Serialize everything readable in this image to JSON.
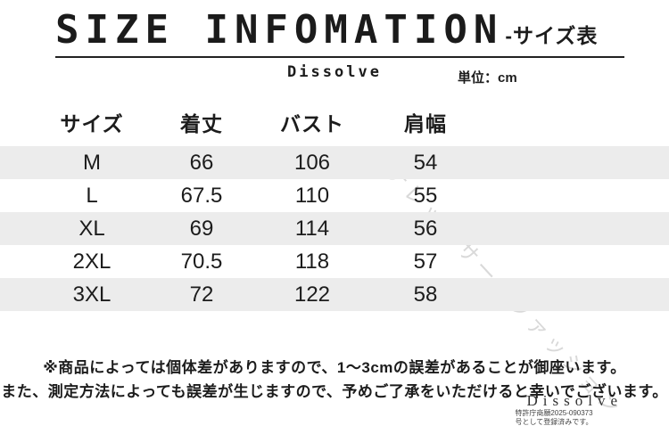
{
  "header": {
    "title": "SIZE INFOMATION",
    "title_suffix": "-サイズ表",
    "brand": "Dissolve",
    "unit_label": "単位：cm"
  },
  "table": {
    "columns": [
      "サイズ",
      "着丈",
      "バスト",
      "肩幅"
    ],
    "rows": [
      {
        "size": "M",
        "length": "66",
        "bust": "106",
        "shoulder": "54"
      },
      {
        "size": "L",
        "length": "67.5",
        "bust": "110",
        "shoulder": "55"
      },
      {
        "size": "XL",
        "length": "69",
        "bust": "114",
        "shoulder": "56"
      },
      {
        "size": "2XL",
        "length": "70.5",
        "bust": "118",
        "shoulder": "57"
      },
      {
        "size": "3XL",
        "length": "72",
        "bust": "122",
        "shoulder": "58"
      }
    ]
  },
  "notes": {
    "line1": "※商品によっては個体差がありますので、1〜3cmの誤差があることが御座います。",
    "line2": "また、測定方法によっても誤差が生じますので、予めご了承をいただけると幸いでございます。"
  },
  "footer": {
    "brand": "Dissolve",
    "trademark_line1": "特許庁商願2025-090373",
    "trademark_line2": "号として登録済みです。"
  },
  "watermark": {
    "text": "ナレッジサーフファッション"
  },
  "colors": {
    "text": "#1c1c1c",
    "stripe": "#ececec",
    "watermark": "#d9d9d9"
  }
}
